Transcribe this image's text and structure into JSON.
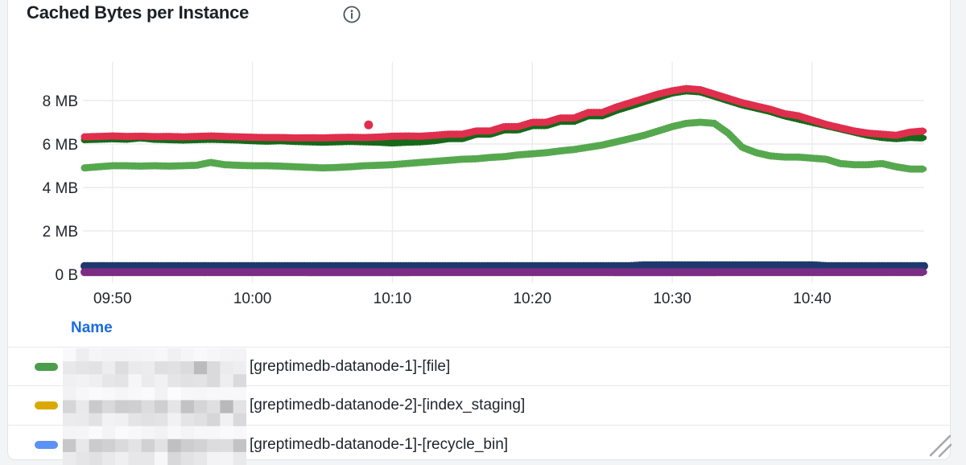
{
  "panel": {
    "title": "Cached Bytes per Instance",
    "info_icon": "info-circle-icon"
  },
  "legend": {
    "header": "Name",
    "rows": [
      {
        "label": "[greptimedb-datanode-1]-[file]",
        "color": "#4a9d4d",
        "redacted_prefix": true
      },
      {
        "label": "[greptimedb-datanode-2]-[index_staging]",
        "color": "#d9a900",
        "redacted_prefix": true
      },
      {
        "label": "[greptimedb-datanode-1]-[recycle_bin]",
        "color": "#5b92f4",
        "redacted_prefix": true
      }
    ]
  },
  "colors": {
    "panel_background": "#ffffff",
    "page_background": "#f3f4f5",
    "grid": "#ebecee",
    "axis_text": "#22262c",
    "title_text": "#1b2026",
    "name_header": "#1a6ce0",
    "series_red": "#e02e4d",
    "series_dark_green": "#17691a",
    "series_light_green": "#56a84f",
    "series_navy": "#1e3a6d",
    "series_purple": "#7b2d85"
  },
  "chart_data": {
    "type": "line",
    "title": "Cached Bytes per Instance",
    "ylabel": "",
    "xlabel": "",
    "unit": "MB",
    "ylim": [
      0,
      9.6
    ],
    "x_start_time": "09:48",
    "x_end_time": "10:48",
    "grid": true,
    "legend_position": "bottom-table",
    "y_ticks": [
      {
        "v": 8,
        "label": "8 MB"
      },
      {
        "v": 6,
        "label": "6 MB"
      },
      {
        "v": 4,
        "label": "4 MB"
      },
      {
        "v": 2,
        "label": "2 MB"
      },
      {
        "v": 0,
        "label": "0 B"
      }
    ],
    "x_ticks": [
      {
        "t": 2,
        "label": "09:50"
      },
      {
        "t": 12,
        "label": "10:00"
      },
      {
        "t": 22,
        "label": "10:10"
      },
      {
        "t": 32,
        "label": "10:20"
      },
      {
        "t": 42,
        "label": "10:30"
      },
      {
        "t": 52,
        "label": "10:40"
      }
    ],
    "series": [
      {
        "id": "series-light-green",
        "color": "#56a84f",
        "width": 9,
        "values": [
          4.9,
          4.95,
          5.0,
          5.0,
          4.98,
          5.0,
          4.98,
          5.0,
          5.02,
          5.15,
          5.05,
          5.02,
          5.0,
          5.0,
          4.98,
          4.95,
          4.93,
          4.9,
          4.92,
          4.95,
          5.0,
          5.02,
          5.05,
          5.1,
          5.15,
          5.2,
          5.25,
          5.3,
          5.32,
          5.38,
          5.42,
          5.5,
          5.55,
          5.6,
          5.68,
          5.75,
          5.85,
          5.95,
          6.1,
          6.25,
          6.4,
          6.6,
          6.8,
          6.95,
          7.0,
          6.95,
          6.5,
          5.85,
          5.6,
          5.45,
          5.4,
          5.4,
          5.35,
          5.3,
          5.1,
          5.05,
          5.05,
          5.1,
          4.95,
          4.85,
          4.85
        ]
      },
      {
        "id": "series-dark-green",
        "color": "#17691a",
        "width": 9,
        "values": [
          6.2,
          6.22,
          6.24,
          6.22,
          6.28,
          6.22,
          6.2,
          6.18,
          6.2,
          6.22,
          6.2,
          6.18,
          6.15,
          6.13,
          6.15,
          6.12,
          6.1,
          6.08,
          6.1,
          6.12,
          6.1,
          6.08,
          6.05,
          6.08,
          6.1,
          6.15,
          6.25,
          6.25,
          6.45,
          6.45,
          6.65,
          6.65,
          6.85,
          6.85,
          7.05,
          7.05,
          7.3,
          7.3,
          7.55,
          7.75,
          7.95,
          8.15,
          8.35,
          8.45,
          8.4,
          8.2,
          8.0,
          7.8,
          7.65,
          7.5,
          7.3,
          7.15,
          7.0,
          6.85,
          6.7,
          6.55,
          6.4,
          6.3,
          6.25,
          6.3,
          6.28
        ]
      },
      {
        "id": "series-red",
        "color": "#e02e4d",
        "width": 9,
        "values": [
          6.33,
          6.35,
          6.37,
          6.35,
          6.36,
          6.34,
          6.35,
          6.33,
          6.35,
          6.37,
          6.35,
          6.33,
          6.31,
          6.3,
          6.3,
          6.28,
          6.29,
          6.28,
          6.3,
          6.31,
          6.3,
          6.32,
          6.36,
          6.37,
          6.36,
          6.4,
          6.45,
          6.45,
          6.6,
          6.6,
          6.8,
          6.8,
          7.0,
          7.0,
          7.2,
          7.2,
          7.45,
          7.45,
          7.7,
          7.9,
          8.1,
          8.3,
          8.45,
          8.55,
          8.5,
          8.3,
          8.1,
          7.9,
          7.75,
          7.6,
          7.4,
          7.3,
          7.1,
          6.9,
          6.75,
          6.6,
          6.5,
          6.45,
          6.4,
          6.55,
          6.6
        ]
      },
      {
        "id": "series-navy",
        "color": "#1e3a6d",
        "width": 10,
        "values": [
          0.38,
          0.38,
          0.38,
          0.38,
          0.38,
          0.38,
          0.38,
          0.38,
          0.38,
          0.38,
          0.38,
          0.38,
          0.38,
          0.38,
          0.38,
          0.38,
          0.38,
          0.38,
          0.38,
          0.38,
          0.38,
          0.38,
          0.38,
          0.38,
          0.38,
          0.38,
          0.38,
          0.38,
          0.38,
          0.38,
          0.38,
          0.38,
          0.38,
          0.38,
          0.38,
          0.38,
          0.38,
          0.38,
          0.38,
          0.38,
          0.42,
          0.42,
          0.42,
          0.42,
          0.42,
          0.42,
          0.42,
          0.42,
          0.42,
          0.42,
          0.42,
          0.42,
          0.42,
          0.38,
          0.38,
          0.38,
          0.38,
          0.38,
          0.38,
          0.38,
          0.38
        ]
      },
      {
        "id": "series-purple",
        "color": "#7b2d85",
        "width": 10,
        "values": [
          0.1,
          0.1,
          0.1,
          0.1,
          0.1,
          0.1,
          0.1,
          0.1,
          0.1,
          0.1,
          0.1,
          0.1,
          0.1,
          0.1,
          0.1,
          0.1,
          0.1,
          0.1,
          0.1,
          0.1,
          0.1,
          0.1,
          0.1,
          0.1,
          0.1,
          0.1,
          0.1,
          0.1,
          0.1,
          0.1,
          0.1,
          0.1,
          0.1,
          0.1,
          0.1,
          0.1,
          0.1,
          0.1,
          0.1,
          0.1,
          0.1,
          0.1,
          0.1,
          0.1,
          0.1,
          0.1,
          0.1,
          0.1,
          0.1,
          0.1,
          0.1,
          0.1,
          0.1,
          0.1,
          0.1,
          0.1,
          0.1,
          0.1,
          0.1,
          0.1,
          0.1
        ]
      }
    ],
    "outlier": {
      "series": "series-red",
      "t": 20.3,
      "value": 6.88
    }
  }
}
